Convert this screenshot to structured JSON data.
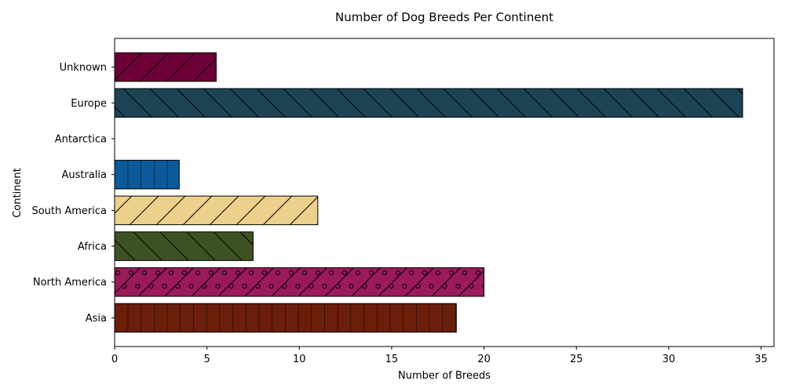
{
  "chart_data": {
    "type": "bar",
    "orientation": "horizontal",
    "title": "Number of Dog Breeds Per Continent",
    "xlabel": "Number of Breeds",
    "ylabel": "Continent",
    "xlim": [
      0,
      35.7
    ],
    "xticks": [
      0,
      5,
      10,
      15,
      20,
      25,
      30,
      35
    ],
    "grid": false,
    "categories": [
      "Asia",
      "North America",
      "Africa",
      "South America",
      "Australia",
      "Antarctica",
      "Europe",
      "Unknown"
    ],
    "values": [
      18.5,
      20,
      7.5,
      11,
      3.5,
      0,
      34,
      5.5
    ],
    "colors": [
      "#6b1e0a",
      "#9b1a5a",
      "#3d5223",
      "#ecd08b",
      "#0b5a9b",
      "#888888",
      "#1d4455",
      "#6d0036"
    ],
    "hatches": [
      "vertical",
      "diagonal-circles",
      "backslash",
      "slash",
      "vertical",
      "none",
      "backslash",
      "slash"
    ]
  }
}
